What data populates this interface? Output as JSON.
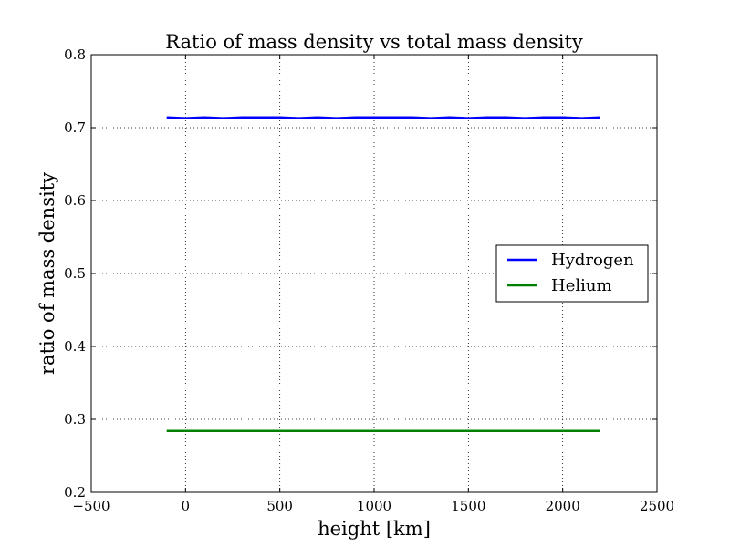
{
  "chart_data": {
    "type": "line",
    "title": "Ratio of mass density vs total mass density",
    "xlabel": "height [km]",
    "ylabel": "ratio of mass density",
    "xlim": [
      -500,
      2500
    ],
    "ylim": [
      0.2,
      0.8
    ],
    "xticks": [
      -500,
      0,
      500,
      1000,
      1500,
      2000,
      2500
    ],
    "xtick_labels": [
      "−500",
      "0",
      "500",
      "1000",
      "1500",
      "2000",
      "2500"
    ],
    "yticks": [
      0.2,
      0.3,
      0.4,
      0.5,
      0.6,
      0.7,
      0.8
    ],
    "ytick_labels": [
      "0.2",
      "0.3",
      "0.4",
      "0.5",
      "0.6",
      "0.7",
      "0.8"
    ],
    "grid": true,
    "legend_position": "center-right",
    "series": [
      {
        "name": "Hydrogen",
        "color": "#0000ff",
        "x": [
          -100,
          0,
          100,
          200,
          300,
          400,
          500,
          600,
          700,
          800,
          900,
          1000,
          1100,
          1200,
          1300,
          1400,
          1500,
          1600,
          1700,
          1800,
          1900,
          2000,
          2100,
          2200
        ],
        "y": [
          0.714,
          0.713,
          0.714,
          0.713,
          0.714,
          0.714,
          0.714,
          0.713,
          0.714,
          0.713,
          0.714,
          0.714,
          0.714,
          0.714,
          0.713,
          0.714,
          0.713,
          0.714,
          0.714,
          0.713,
          0.714,
          0.714,
          0.713,
          0.714
        ]
      },
      {
        "name": "Helium",
        "color": "#008000",
        "x": [
          -100,
          0,
          100,
          200,
          300,
          400,
          500,
          600,
          700,
          800,
          900,
          1000,
          1100,
          1200,
          1300,
          1400,
          1500,
          1600,
          1700,
          1800,
          1900,
          2000,
          2100,
          2200
        ],
        "y": [
          0.284,
          0.284,
          0.284,
          0.284,
          0.284,
          0.284,
          0.284,
          0.284,
          0.284,
          0.284,
          0.284,
          0.284,
          0.284,
          0.284,
          0.284,
          0.284,
          0.284,
          0.284,
          0.284,
          0.284,
          0.284,
          0.284,
          0.284,
          0.284
        ]
      }
    ]
  }
}
